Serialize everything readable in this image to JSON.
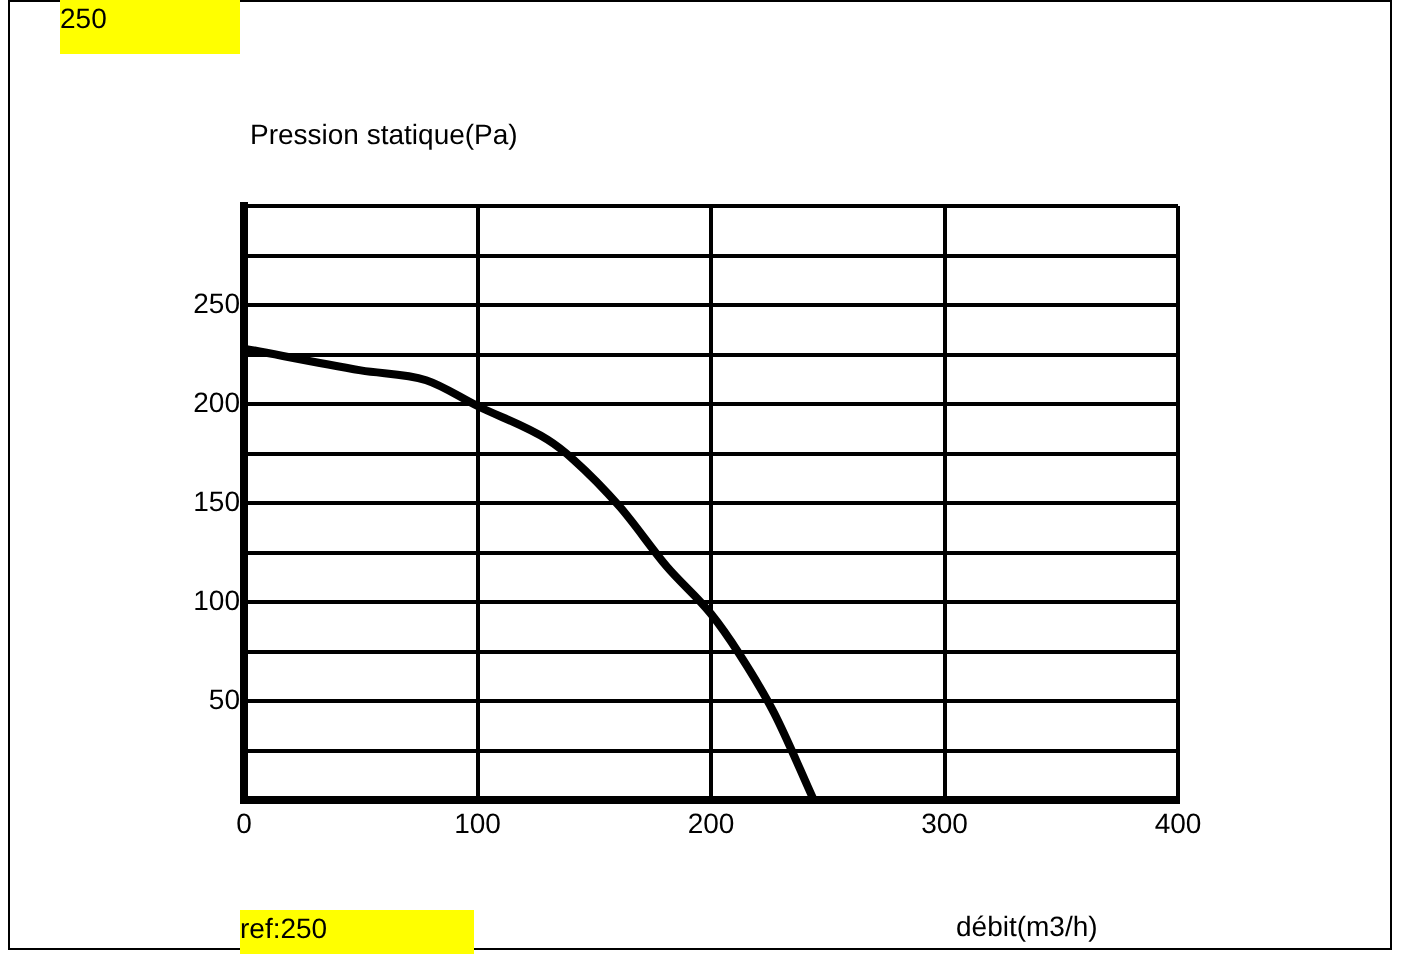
{
  "chart_data": {
    "type": "line",
    "ylabel": "Pression statique(Pa)",
    "xlabel": "débit(m3/h)",
    "annotations": [
      "250",
      "ref:250"
    ],
    "x": [
      0,
      50,
      78,
      100,
      130,
      141,
      161,
      181,
      200,
      212,
      227,
      244
    ],
    "series": [
      {
        "color": "#000000",
        "values": [
          228,
          217,
          212,
          199,
          182,
          172,
          148,
          118,
          94,
          74,
          44,
          0
        ]
      }
    ],
    "xlim": [
      0,
      400
    ],
    "xticks": [
      0,
      100,
      200,
      300,
      400
    ],
    "ylim": [
      0,
      300
    ],
    "yticks": [
      {
        "value": 0,
        "label": null
      },
      {
        "value": 25,
        "label": null
      },
      50,
      {
        "value": 75,
        "label": null
      },
      100,
      {
        "value": 125,
        "label": null
      },
      150,
      {
        "value": 175,
        "label": null
      },
      200,
      {
        "value": 225,
        "label": null
      },
      250,
      {
        "value": 275,
        "label": null
      },
      {
        "value": 300,
        "label": null
      }
    ],
    "grid": true,
    "legend": false,
    "marker": "none",
    "line_style": "solid"
  }
}
